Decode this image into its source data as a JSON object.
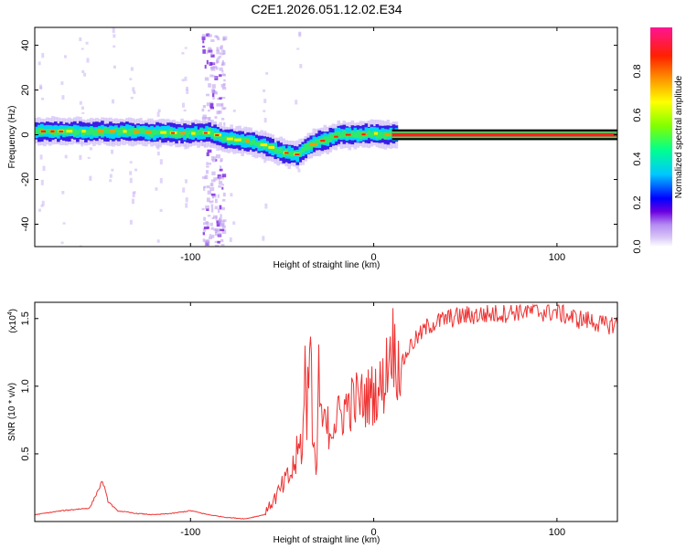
{
  "title": "C2E1.2026.051.12.02.E34",
  "chart_data": [
    {
      "type": "heatmap",
      "name": "spectrogram",
      "xlabel": "Height of straight line (km)",
      "ylabel": "Frequency (Hz)",
      "xlim": [
        -185,
        133
      ],
      "ylim": [
        -50,
        48
      ],
      "xticks": [
        -100,
        0,
        100
      ],
      "yticks": [
        -40,
        -20,
        0,
        20,
        40
      ],
      "colorbar": {
        "label": "Normalized spectral amplitude",
        "range": [
          0,
          1
        ],
        "ticks": [
          "0.0",
          "0.2",
          "0.4",
          "0.6",
          "0.8"
        ],
        "colors": [
          "#ffffff",
          "#b58bf2",
          "#6a00e0",
          "#0000ff",
          "#00c8ff",
          "#00ff90",
          "#80ff00",
          "#ffff00",
          "#ff9900",
          "#ff2000",
          "#ff1493"
        ]
      },
      "ridge": {
        "x": [
          -185,
          -160,
          -140,
          -120,
          -100,
          -90,
          -85,
          -80,
          -70,
          -60,
          -50,
          -42,
          -38,
          -32,
          -25,
          -20,
          -10,
          0,
          5,
          10,
          133
        ],
        "y": [
          1.5,
          1.5,
          1.5,
          1,
          0.5,
          1,
          -1,
          -2,
          -3,
          -5,
          -8,
          -9,
          -6,
          -3,
          -2,
          0,
          0,
          0.5,
          0,
          0,
          0
        ]
      },
      "steady_line": {
        "x_start": 10,
        "x_end": 133,
        "frequency": 0
      }
    },
    {
      "type": "line",
      "name": "snr",
      "xlabel": "Height of straight line (km)",
      "ylabel": "SNR (10 * v/v)",
      "scale_label": "(x10",
      "scale_exponent": "4",
      "xlim": [
        -185,
        133
      ],
      "ylim": [
        0,
        1.62
      ],
      "xticks": [
        -100,
        0,
        100
      ],
      "yticks": [
        0.5,
        1.0,
        1.5
      ],
      "ytick_labels": [
        "0.5",
        "1.0",
        "1.5"
      ],
      "series": [
        {
          "name": "SNR",
          "color": "#ee3333",
          "x": [
            -185,
            -170,
            -155,
            -148,
            -145,
            -140,
            -130,
            -120,
            -110,
            -100,
            -90,
            -80,
            -70,
            -60,
            -55,
            -50,
            -45,
            -40,
            -36,
            -35,
            -33,
            -31,
            -30,
            -25,
            -20,
            -15,
            -10,
            -5,
            0,
            5,
            10,
            12,
            15,
            20,
            30,
            40,
            50,
            60,
            70,
            80,
            90,
            100,
            110,
            120,
            125,
            133
          ],
          "y": [
            0.05,
            0.08,
            0.1,
            0.3,
            0.15,
            0.08,
            0.06,
            0.05,
            0.06,
            0.08,
            0.05,
            0.03,
            0.02,
            0.05,
            0.15,
            0.25,
            0.35,
            0.55,
            0.9,
            1.3,
            0.6,
            0.5,
            0.8,
            0.7,
            0.75,
            0.85,
            0.9,
            0.9,
            0.95,
            1.0,
            1.35,
            1.2,
            1.15,
            1.3,
            1.45,
            1.5,
            1.52,
            1.53,
            1.54,
            1.56,
            1.55,
            1.55,
            1.5,
            1.48,
            1.45,
            1.46
          ]
        }
      ]
    }
  ]
}
